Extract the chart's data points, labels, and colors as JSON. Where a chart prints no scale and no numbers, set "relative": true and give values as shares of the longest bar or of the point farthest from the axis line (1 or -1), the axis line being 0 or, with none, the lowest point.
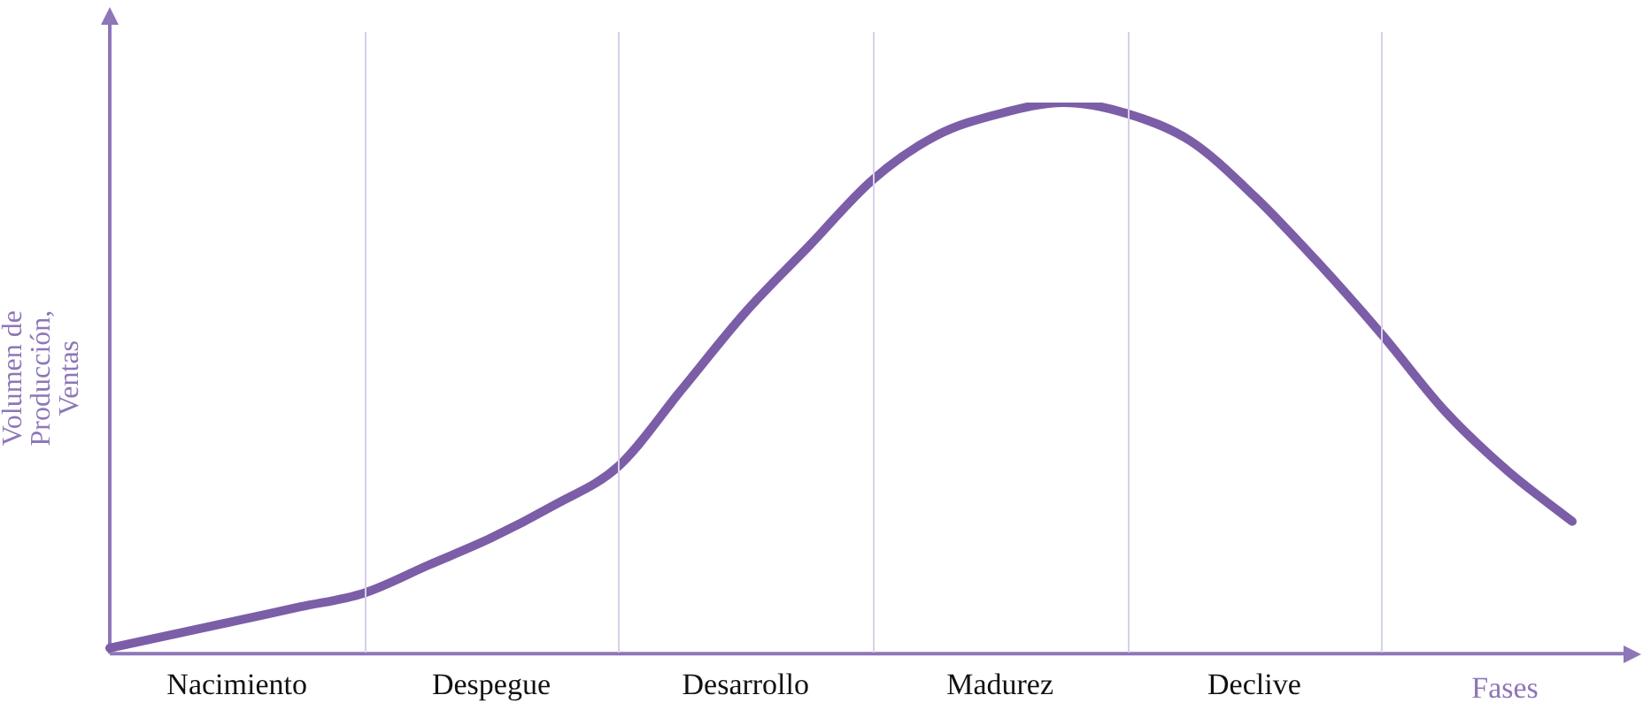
{
  "chart_data": {
    "type": "line",
    "relative": true,
    "ylabel": "Volumen de\nProducción,\nVentas",
    "xlabel": "Fases",
    "categories": [
      null,
      null,
      "Nacimiento",
      null,
      null,
      null,
      "Despegue",
      null,
      null,
      null,
      "Desarrollo",
      null,
      null,
      null,
      "Madurez",
      null,
      null,
      null,
      "Declive",
      null,
      null,
      null,
      null,
      null
    ],
    "series": [
      {
        "color": "#7b5ea7",
        "values": [
          0.01,
          0.035,
          0.06,
          0.085,
          0.11,
          0.16,
          0.21,
          0.27,
          0.34,
          0.48,
          0.62,
          0.74,
          0.86,
          0.94,
          0.98,
          1.0,
          0.98,
          0.93,
          0.83,
          0.71,
          0.58,
          0.44,
          0.33,
          0.24
        ]
      }
    ],
    "legend": false,
    "marker": "none",
    "line_style": "solid"
  }
}
